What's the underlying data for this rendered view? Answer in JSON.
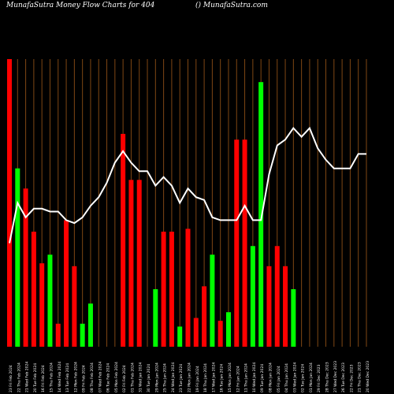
{
  "header": {
    "left_text": "MunafaSutra  Money Flow  Charts for 404",
    "right_text": "() MunafaSutra.com"
  },
  "colors": {
    "background": "#000000",
    "up": "#00ff00",
    "down": "#ff0000",
    "line": "#ffffff",
    "grid": "#b5651d",
    "text": "#ffffff"
  },
  "chart_data": {
    "type": "bar",
    "title": "",
    "xlabel": "",
    "ylabel": "",
    "ylim": [
      0,
      100
    ],
    "grid": true,
    "categories": [
      "23 Fri Feb 2024",
      "22 Thu Feb 2024",
      "21 Wed Feb 2024",
      "20 Tue Feb 2024",
      "16 Fri Feb 2024",
      "15 Thu Feb 2024",
      "14 Wed Feb 2024",
      "13 Tue Feb 2024",
      "12 Mon Feb 2024",
      "09 Fri Feb 2024",
      "08 Thu Feb 2024",
      "07 Wed Feb 2024",
      "06 Tue Feb 2024",
      "05 Mon Feb 2024",
      "02 Fri Feb 2024",
      "01 Thu Feb 2024",
      "31 Wed Jan 2024",
      "30 Tue Jan 2024",
      "29 Mon Jan 2024",
      "25 Thu Jan 2024",
      "24 Wed Jan 2024",
      "23 Tue Jan 2024",
      "22 Mon Jan 2024",
      "19 Fri Jan 2024",
      "18 Thu Jan 2024",
      "17 Wed Jan 2024",
      "16 Tue Jan 2024",
      "15 Mon Jan 2024",
      "12 Fri Jan 2024",
      "11 Thu Jan 2024",
      "10 Wed Jan 2024",
      "09 Tue Jan 2024",
      "08 Mon Jan 2024",
      "05 Fri Jan 2024",
      "04 Thu Jan 2024",
      "03 Wed Jan 2024",
      "02 Tue Jan 2024",
      "01 Mon Jan 2024",
      "29 Fri Dec 2023",
      "28 Thu Dec 2023",
      "27 Wed Dec 2023",
      "26 Tue Dec 2023",
      "22 Fri Dec 2023",
      "21 Thu Dec 2023",
      "20 Wed Dec 2023"
    ],
    "series": [
      {
        "colors": [
          "down",
          "up",
          "down",
          "down",
          "down",
          "up",
          "down",
          "down",
          "down",
          "up",
          "up",
          "down",
          "up",
          "down",
          "down",
          "down",
          "down",
          "down",
          "up",
          "down",
          "down",
          "up",
          "down",
          "down",
          "down",
          "up",
          "down",
          "up",
          "down",
          "down",
          "up",
          "up",
          "down",
          "down",
          "down",
          "up",
          "down",
          "up",
          "down",
          "down",
          "down",
          "up",
          "down",
          "up",
          "up"
        ],
        "values": [
          100,
          62,
          55,
          40,
          29,
          32,
          8,
          44,
          28,
          8,
          15,
          0,
          0,
          0,
          74,
          58,
          58,
          0,
          20,
          40,
          40,
          7,
          41,
          10,
          21,
          32,
          9,
          12,
          72,
          72,
          35,
          92,
          28,
          35,
          28,
          20,
          0,
          0,
          0,
          0,
          0,
          0,
          0,
          0,
          0
        ],
        "line": [
          36,
          50,
          45,
          48,
          48,
          47,
          47,
          44,
          43,
          45,
          49,
          52,
          57,
          64,
          68,
          64,
          61,
          61,
          56,
          59,
          56,
          50,
          55,
          52,
          51,
          45,
          44,
          44,
          44,
          49,
          44,
          44,
          60,
          70,
          72,
          76,
          73,
          76,
          69,
          65,
          62,
          62,
          62,
          67,
          67
        ]
      }
    ]
  }
}
